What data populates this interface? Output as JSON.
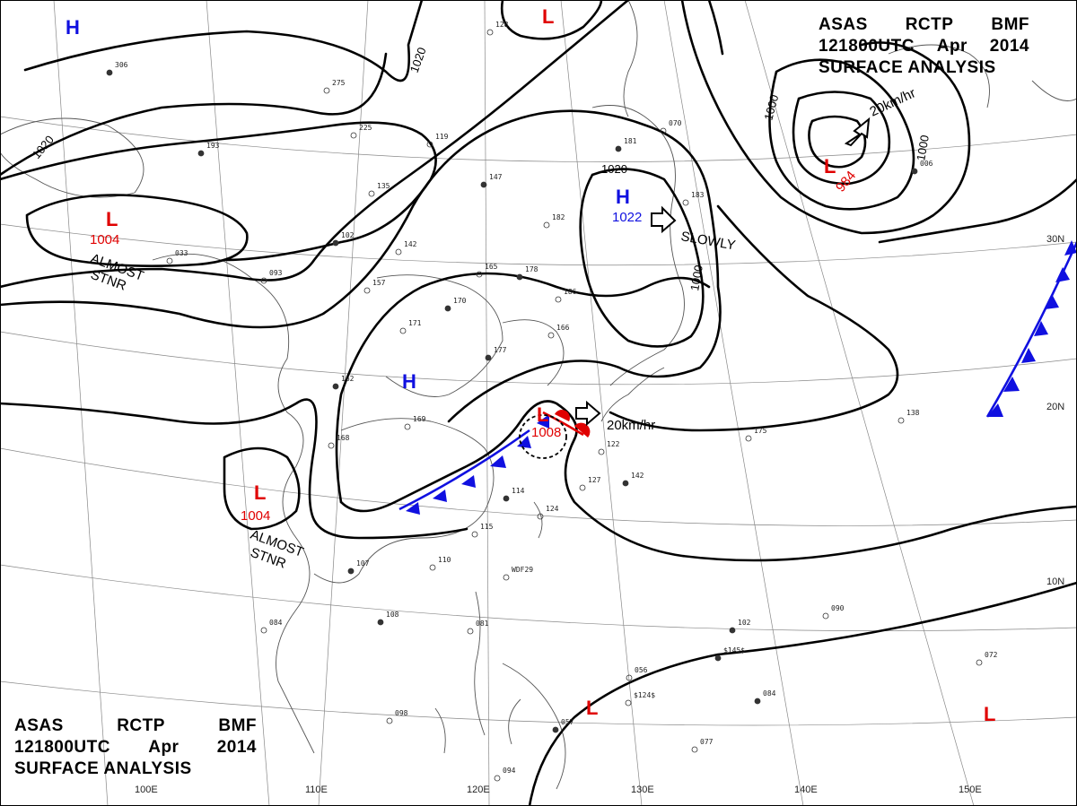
{
  "header": {
    "line1": [
      "ASAS",
      "RCTP",
      "BMF"
    ],
    "line2": [
      "121800UTC",
      "Apr",
      "2014"
    ],
    "line3": "SURFACE ANALYSIS"
  },
  "isobar_labels": [
    "1020",
    "1020",
    "1020",
    "1000",
    "1000",
    "1000"
  ],
  "systems": {
    "lows": [
      {
        "symbol": "L",
        "pressure": "984",
        "motion": "20km/hr"
      },
      {
        "symbol": "L",
        "pressure": "1004",
        "motion": "ALMOST STNR"
      },
      {
        "symbol": "L",
        "pressure": "1004",
        "motion": "ALMOST STNR"
      },
      {
        "symbol": "L",
        "pressure": "1008",
        "motion": "20km/hr"
      },
      {
        "symbol": "L",
        "pressure": "",
        "motion": ""
      },
      {
        "symbol": "L",
        "pressure": "",
        "motion": ""
      },
      {
        "symbol": "L",
        "pressure": "",
        "motion": ""
      }
    ],
    "highs": [
      {
        "symbol": "H",
        "pressure": "1022",
        "motion": "SLOWLY"
      },
      {
        "symbol": "H",
        "pressure": "",
        "motion": ""
      },
      {
        "symbol": "H",
        "pressure": "",
        "motion": ""
      }
    ]
  },
  "motion_words": {
    "almost": "ALMOST",
    "stnr": "STNR"
  },
  "longitude_labels": [
    "100E",
    "110E",
    "120E",
    "130E",
    "140E",
    "150E"
  ],
  "latitude_labels": [
    "30N",
    "20N",
    "10N"
  ],
  "station_numbers": [
    "306",
    "275",
    "225",
    "193",
    "119",
    "135",
    "147",
    "182",
    "128",
    "181",
    "070",
    "183",
    "006",
    "033",
    "093",
    "102",
    "142",
    "165",
    "178",
    "186",
    "157",
    "170",
    "171",
    "166",
    "162",
    "169",
    "168",
    "177",
    "175",
    "138",
    "114",
    "124",
    "122",
    "142",
    "127",
    "110",
    "107",
    "115",
    "084",
    "108",
    "081",
    "056",
    "102",
    "090",
    "072",
    "084",
    "077",
    "098",
    "057",
    "094",
    "WDF29",
    "$145$",
    "$124$"
  ],
  "colors": {
    "low": "#e00000",
    "high": "#1010e0",
    "cold_front": "#1010e0",
    "warm_front": "#e00000",
    "isobar": "#000000",
    "coast": "#555555",
    "grid": "#777777"
  }
}
